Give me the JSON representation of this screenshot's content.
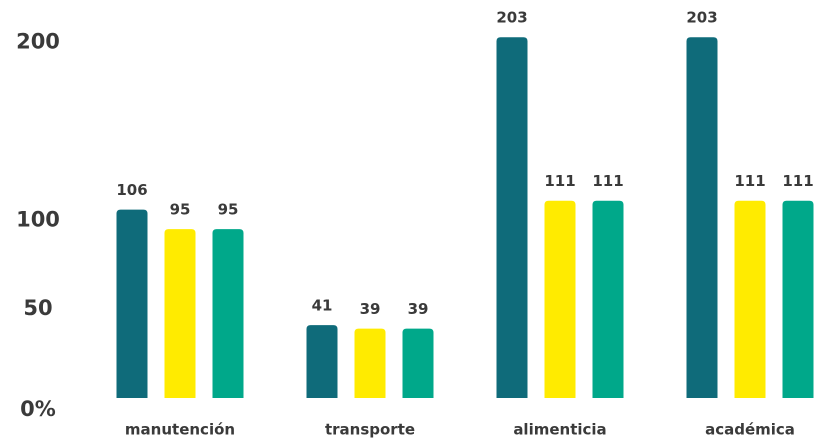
{
  "chart_data": {
    "type": "bar",
    "categories": [
      "manutención",
      "transporte",
      "alimenticia",
      "académica"
    ],
    "series": [
      {
        "color": "#0f6b7a",
        "values": [
          106,
          41,
          203,
          203
        ]
      },
      {
        "color": "#ffeb00",
        "values": [
          95,
          39,
          111,
          111
        ]
      },
      {
        "color": "#00a88a",
        "values": [
          95,
          39,
          111,
          111
        ]
      }
    ],
    "ylim": [
      0,
      220
    ],
    "yticks": [
      {
        "value": 0,
        "label": "0%"
      },
      50,
      100,
      200
    ],
    "grid": false
  }
}
